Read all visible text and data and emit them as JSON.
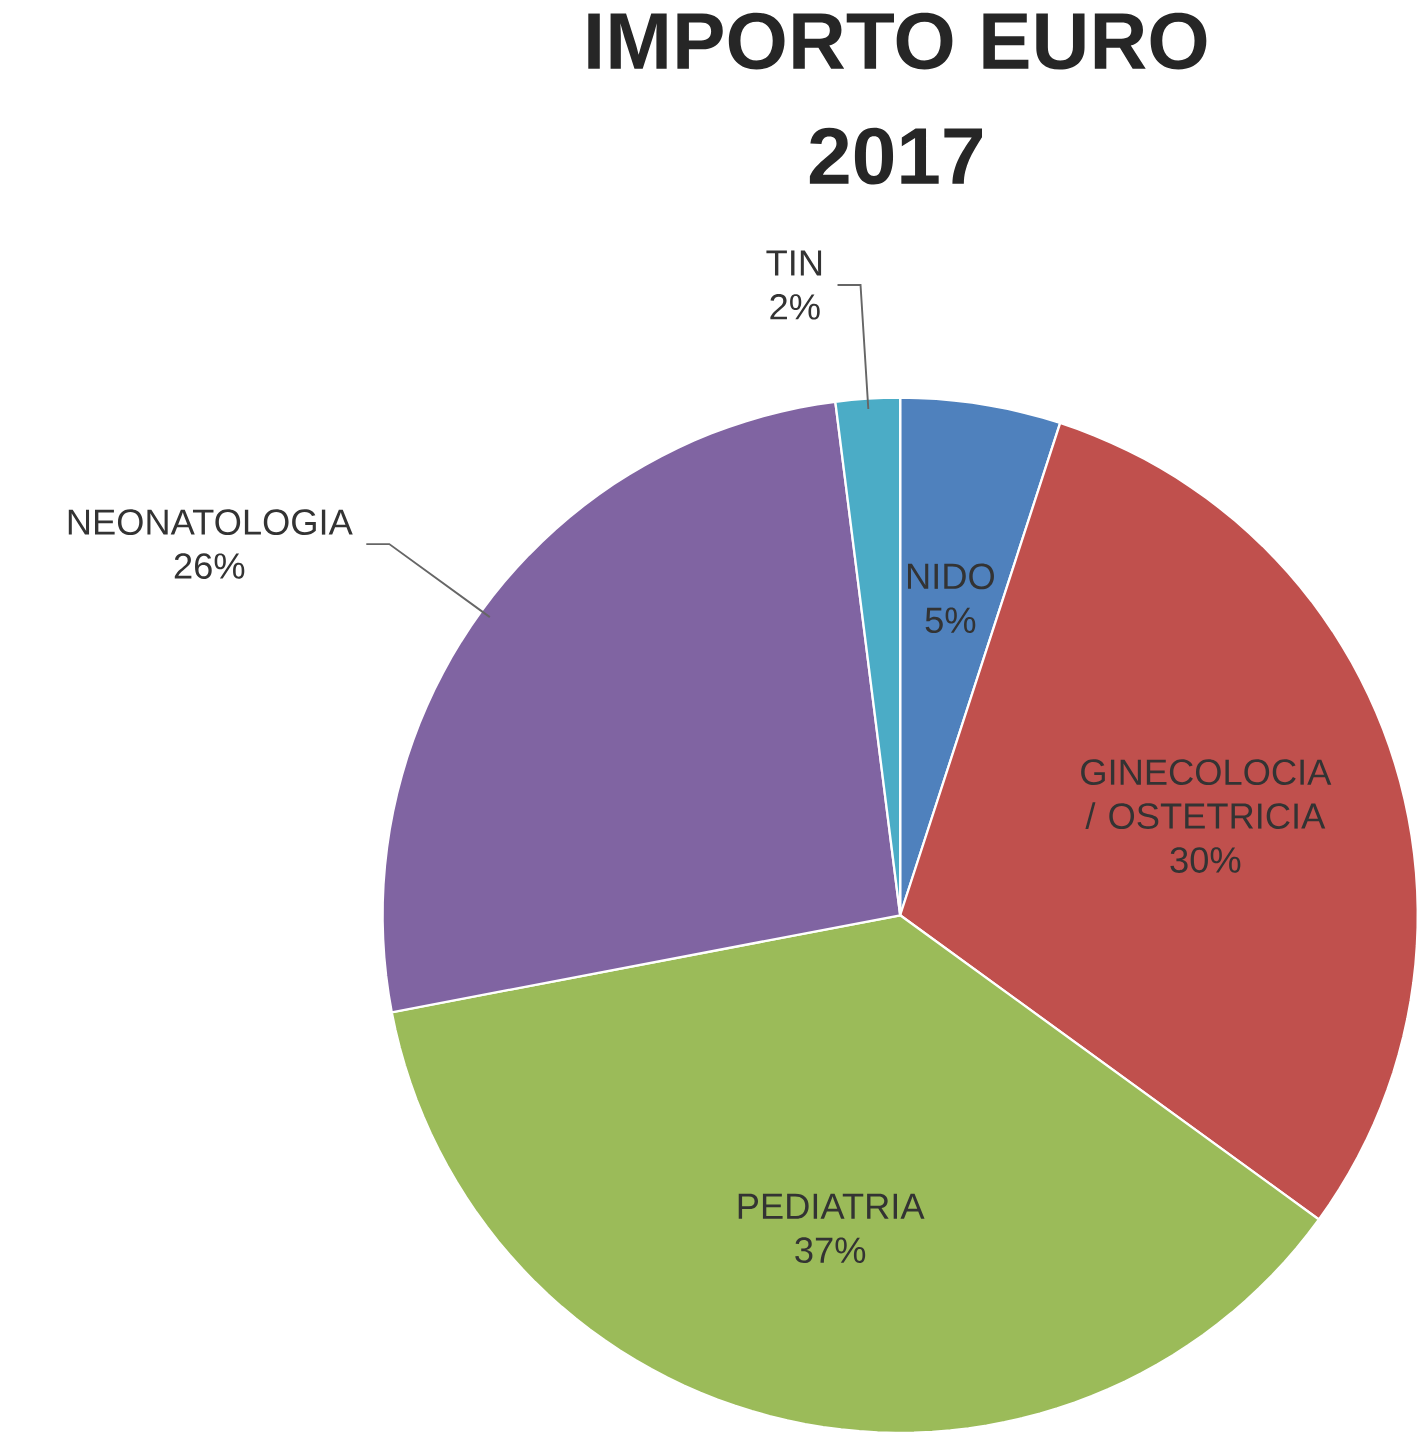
{
  "chart_data": {
    "type": "pie",
    "title": "IMPORTO EURO",
    "subtitle": "2017",
    "categories": [
      "NIDO",
      "GINECOLOCIA / OSTETRICIA",
      "PEDIATRIA",
      "NEONATOLOGIA",
      "TIN"
    ],
    "values": [
      5,
      30,
      37,
      26,
      2
    ],
    "value_labels": [
      "5%",
      "30%",
      "37%",
      "26%",
      "2%"
    ],
    "colors": [
      "#4f81bd",
      "#c0504d",
      "#9bbb59",
      "#8064a2",
      "#4bacc6"
    ]
  }
}
